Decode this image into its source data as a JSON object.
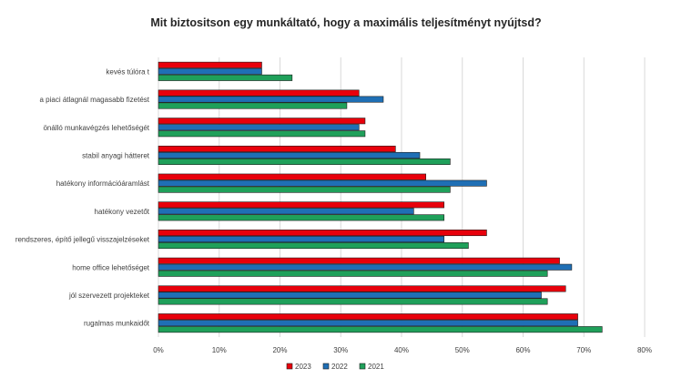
{
  "chart_data": {
    "type": "bar",
    "orientation": "horizontal",
    "title": "Mit biztositson egy munkáltató, hogy a maximális teljesítményt nyújtsd?",
    "categories": [
      "kevés túlóra t",
      "a piaci átlagnál magasabb fizetést",
      "önálló munkavégzés lehetőségét",
      "stabil anyagi hátteret",
      "hatékony információáramlást",
      "hatékony vezetőt",
      "rendszeres, építő jellegű visszajelzéseket",
      "home office lehetőséget",
      "jól szervezett projekteket",
      "rugalmas munkaidőt"
    ],
    "series": [
      {
        "name": "2023",
        "color": "#e8000b",
        "values": [
          17,
          33,
          34,
          39,
          44,
          47,
          54,
          66,
          67,
          69
        ]
      },
      {
        "name": "2022",
        "color": "#1f6fb5",
        "values": [
          17,
          37,
          33,
          43,
          54,
          42,
          47,
          68,
          63,
          69
        ]
      },
      {
        "name": "2021",
        "color": "#1fa05a",
        "values": [
          22,
          31,
          34,
          48,
          48,
          47,
          51,
          64,
          64,
          73
        ]
      }
    ],
    "x_ticks": [
      "0%",
      "10%",
      "20%",
      "30%",
      "40%",
      "50%",
      "60%",
      "70%",
      "80%"
    ],
    "xlim": [
      0,
      80
    ],
    "grid": true,
    "legend": "bottom"
  }
}
